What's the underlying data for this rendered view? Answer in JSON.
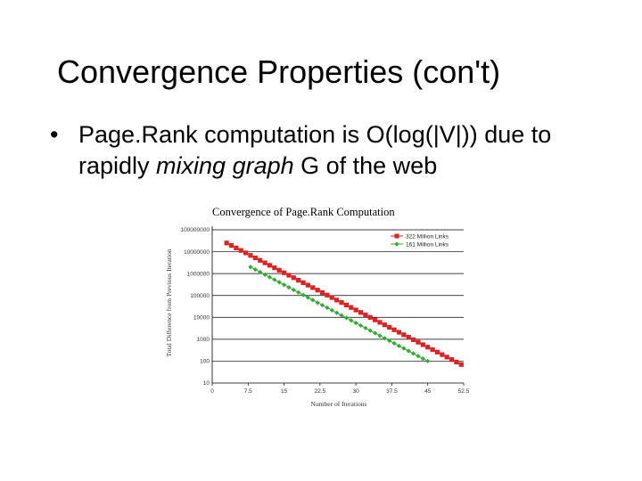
{
  "slide": {
    "title": "Convergence Properties (con't)",
    "bullet": {
      "symbol": "•",
      "text_before": "Page.Rank computation is O(log(|V|)) due to rapidly ",
      "emphasis": "mixing graph",
      "text_after": " G of the web"
    }
  },
  "chart_data": {
    "type": "line",
    "title": "Convergence of Page.Rank Computation",
    "xlabel": "Number of Iterations",
    "ylabel": "Total Difference from Previous Iteration",
    "y_scale": "log",
    "x_ticks": [
      "0",
      "7.5",
      "15",
      "22.5",
      "30",
      "37.5",
      "45",
      "52.5"
    ],
    "y_ticks": [
      "10",
      "100",
      "1000",
      "10000",
      "100000",
      "1000000",
      "10000000",
      "100000000"
    ],
    "xlim": [
      0,
      52.5
    ],
    "ylim": [
      10,
      100000000
    ],
    "grid": "horizontal",
    "legend_position": "top-right",
    "series": [
      {
        "name": "322 Million Links",
        "color": "#dd2222",
        "marker": "square",
        "points": [
          [
            3,
            25000000
          ],
          [
            52,
            70
          ]
        ]
      },
      {
        "name": "161 Million Links",
        "color": "#33aa33",
        "marker": "diamond",
        "points": [
          [
            8,
            2000000
          ],
          [
            45,
            100
          ]
        ]
      }
    ]
  }
}
